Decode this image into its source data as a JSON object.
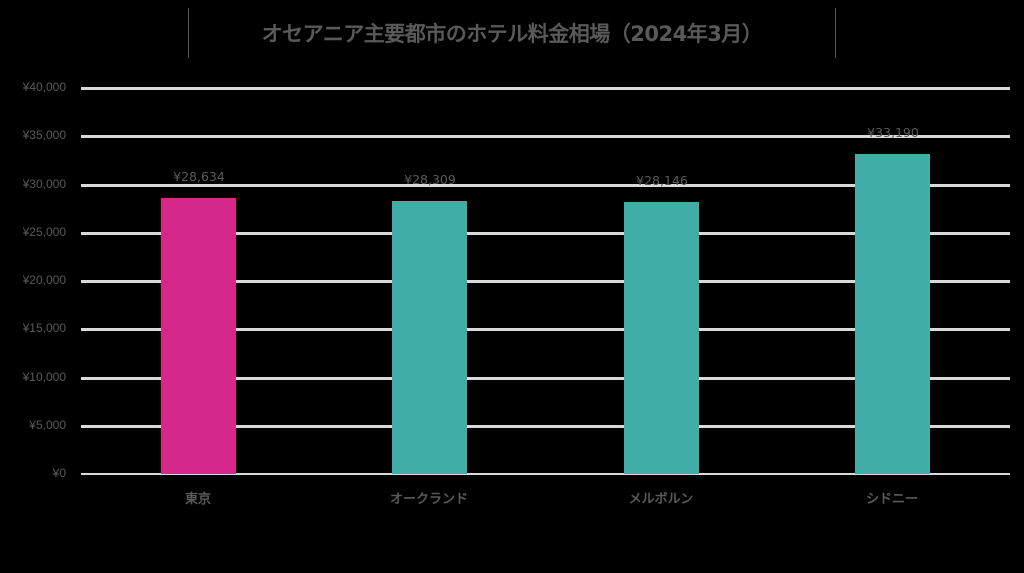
{
  "chart_data": {
    "type": "bar",
    "title": "オセアニア主要都市のホテル料金相場（2024年3月）",
    "xlabel": "",
    "ylabel": "",
    "categories": [
      "東京",
      "オークランド",
      "メルボルン",
      "シドニー"
    ],
    "values": [
      28634,
      28309,
      28146,
      33190
    ],
    "value_labels": [
      "¥28,634",
      "¥28,309",
      "¥28,146",
      "¥33,190"
    ],
    "bar_colors": [
      "#D6278A",
      "#40ADA6",
      "#40ADA6",
      "#40ADA6"
    ],
    "ylim": [
      0,
      40000
    ],
    "yticks": [
      0,
      5000,
      10000,
      15000,
      20000,
      25000,
      30000,
      35000,
      40000
    ],
    "ytick_labels": [
      "¥0",
      "¥5,000",
      "¥10,000",
      "¥15,000",
      "¥20,000",
      "¥25,000",
      "¥30,000",
      "¥35,000",
      "¥40,000"
    ],
    "grid": true,
    "legend": null
  },
  "colors": {
    "background": "#000000",
    "highlight": "#D6278A",
    "default": "#40ADA6",
    "gridline": "#D9D9D9",
    "text": "#595959"
  }
}
